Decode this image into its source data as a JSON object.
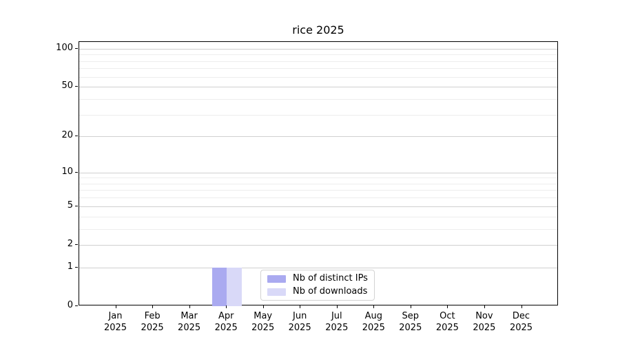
{
  "chart_data": {
    "type": "bar",
    "title": "rice 2025",
    "categories": [
      "Jan",
      "Feb",
      "Mar",
      "Apr",
      "May",
      "Jun",
      "Jul",
      "Aug",
      "Sep",
      "Oct",
      "Nov",
      "Dec"
    ],
    "x_year": "2025",
    "series": [
      {
        "name": "Nb of distinct IPs",
        "color": "#aaaaf0",
        "values": [
          0,
          0,
          0,
          1,
          0,
          0,
          0,
          0,
          0,
          0,
          0,
          0
        ]
      },
      {
        "name": "Nb of downloads",
        "color": "#d9d9f8",
        "values": [
          0,
          0,
          0,
          1,
          0,
          0,
          0,
          0,
          0,
          0,
          0,
          0
        ]
      }
    ],
    "xlabel": "",
    "ylabel": "",
    "y_scale": "log10(1+x)",
    "y_major_ticks": [
      0,
      1,
      2,
      5,
      10,
      20,
      50,
      100
    ],
    "y_minor_ticks": [
      3,
      4,
      6,
      7,
      8,
      9,
      30,
      40,
      60,
      70,
      80,
      90
    ],
    "ylim": [
      0,
      113
    ],
    "grid": "horizontal-only",
    "legend_position": "lower-center-inside",
    "grid_colors": {
      "major": "#cfcfcf",
      "minor": "#ededed"
    },
    "spine_color": "#000000",
    "background_color": "#ffffff"
  }
}
